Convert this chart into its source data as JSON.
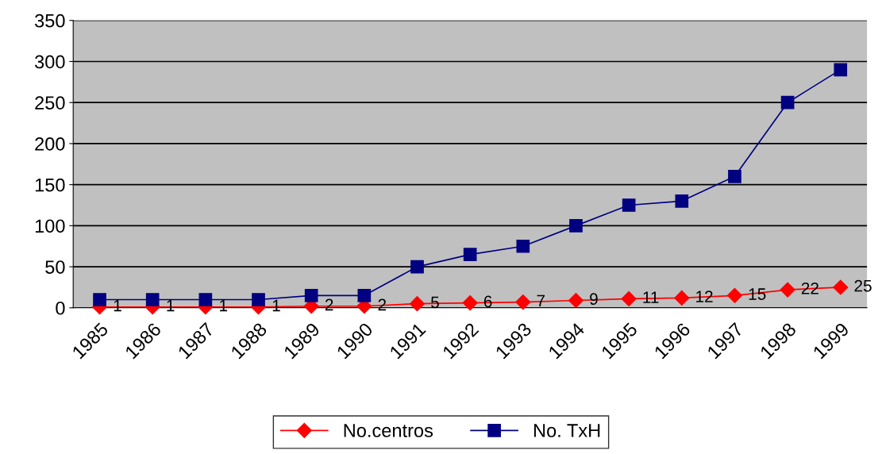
{
  "chart_data": {
    "type": "line",
    "categories": [
      "1985",
      "1986",
      "1987",
      "1988",
      "1989",
      "1990",
      "1991",
      "1992",
      "1993",
      "1994",
      "1995",
      "1996",
      "1997",
      "1998",
      "1999"
    ],
    "ylim": [
      0,
      350
    ],
    "yticks": [
      0,
      50,
      100,
      150,
      200,
      250,
      300,
      350
    ],
    "grid": "y",
    "legend": "bottom",
    "series": [
      {
        "name": "No.centros",
        "color": "#ff0000",
        "marker": "diamond",
        "values": [
          1,
          1,
          1,
          1,
          2,
          2,
          5,
          6,
          7,
          9,
          11,
          12,
          15,
          22,
          25
        ],
        "value_labels": [
          "1",
          "1",
          "1",
          "1",
          "2",
          "2",
          "5",
          "6",
          "7",
          "9",
          "11",
          "12",
          "15",
          "22",
          "25"
        ]
      },
      {
        "name": "No. TxH",
        "color": "#000080",
        "marker": "square",
        "values": [
          10,
          10,
          10,
          10,
          15,
          15,
          50,
          65,
          75,
          100,
          125,
          130,
          160,
          250,
          290
        ]
      }
    ]
  }
}
